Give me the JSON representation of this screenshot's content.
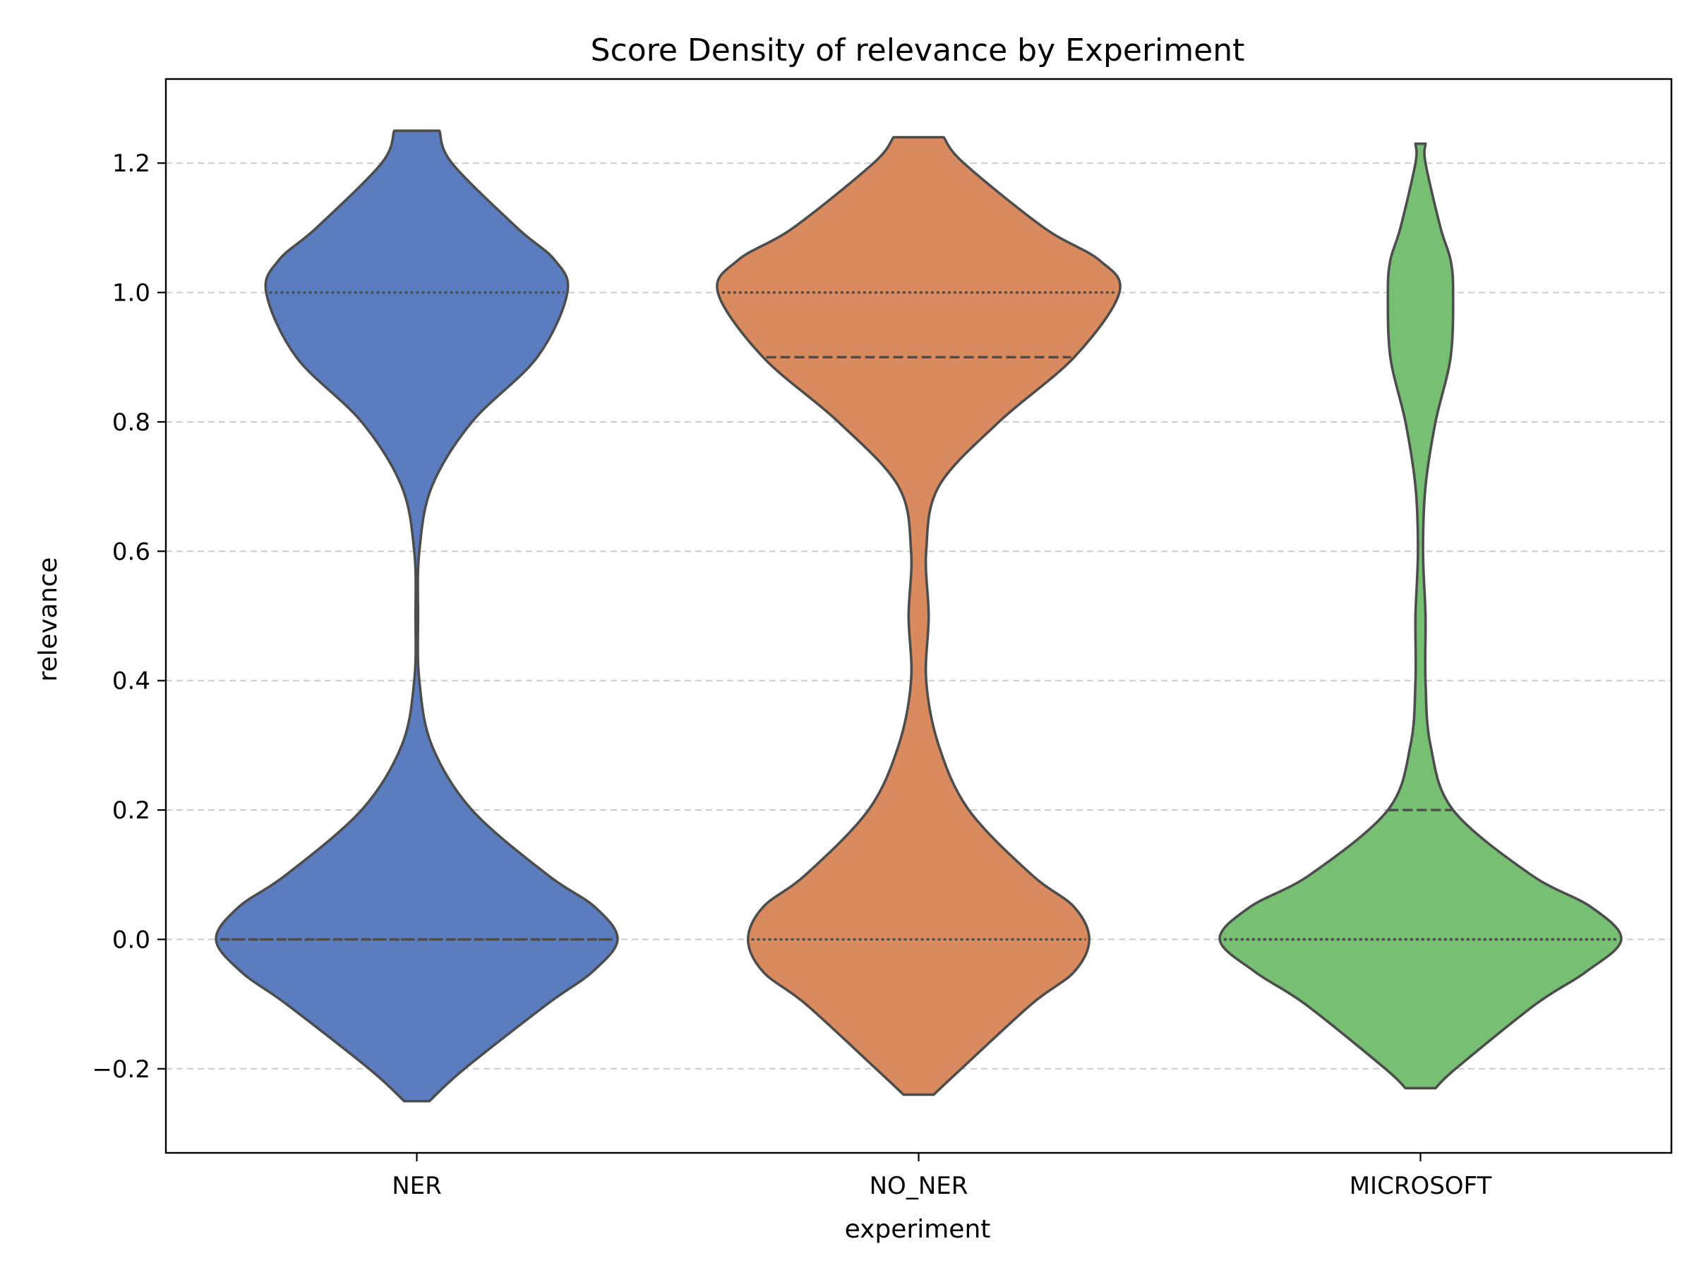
{
  "chart_data": {
    "type": "violin",
    "title": "Score Density of relevance by Experiment",
    "xlabel": "experiment",
    "ylabel": "relevance",
    "ylim": [
      -0.33,
      1.33
    ],
    "yticks": [
      -0.2,
      0.0,
      0.2,
      0.4,
      0.6,
      0.8,
      1.0,
      1.2
    ],
    "ytick_labels": [
      "−0.2",
      "0.0",
      "0.2",
      "0.4",
      "0.6",
      "0.8",
      "1.0",
      "1.2"
    ],
    "grid": "y-dashed",
    "categories": [
      "NER",
      "NO_NER",
      "MICROSOFT"
    ],
    "series": [
      {
        "color": "#5b7dbf",
        "min": -0.25,
        "max": 1.25,
        "profile": [
          [
            -0.25,
            0.05
          ],
          [
            -0.2,
            0.19
          ],
          [
            -0.1,
            0.52
          ],
          [
            -0.05,
            0.7
          ],
          [
            0.0,
            0.8
          ],
          [
            0.05,
            0.71
          ],
          [
            0.1,
            0.52
          ],
          [
            0.2,
            0.22
          ],
          [
            0.3,
            0.06
          ],
          [
            0.4,
            0.01
          ],
          [
            0.5,
            0.005
          ],
          [
            0.6,
            0.01
          ],
          [
            0.7,
            0.06
          ],
          [
            0.8,
            0.22
          ],
          [
            0.9,
            0.48
          ],
          [
            1.0,
            0.6
          ],
          [
            1.05,
            0.55
          ],
          [
            1.1,
            0.4
          ],
          [
            1.2,
            0.14
          ],
          [
            1.25,
            0.09
          ]
        ],
        "quartiles": [
          0.0,
          0.0,
          1.0
        ]
      },
      {
        "color": "#d98a5e",
        "min": -0.24,
        "max": 1.24,
        "profile": [
          [
            -0.24,
            0.06
          ],
          [
            -0.2,
            0.17
          ],
          [
            -0.1,
            0.45
          ],
          [
            -0.05,
            0.62
          ],
          [
            0.0,
            0.68
          ],
          [
            0.05,
            0.62
          ],
          [
            0.1,
            0.45
          ],
          [
            0.2,
            0.2
          ],
          [
            0.3,
            0.08
          ],
          [
            0.4,
            0.03
          ],
          [
            0.5,
            0.04
          ],
          [
            0.6,
            0.03
          ],
          [
            0.7,
            0.08
          ],
          [
            0.8,
            0.32
          ],
          [
            0.9,
            0.62
          ],
          [
            1.0,
            0.8
          ],
          [
            1.05,
            0.72
          ],
          [
            1.1,
            0.5
          ],
          [
            1.2,
            0.18
          ],
          [
            1.24,
            0.1
          ]
        ],
        "quartiles": [
          0.0,
          0.9,
          1.0
        ]
      },
      {
        "color": "#77c073",
        "min": -0.23,
        "max": 1.23,
        "profile": [
          [
            -0.23,
            0.06
          ],
          [
            -0.2,
            0.14
          ],
          [
            -0.1,
            0.46
          ],
          [
            -0.05,
            0.66
          ],
          [
            0.0,
            0.8
          ],
          [
            0.05,
            0.68
          ],
          [
            0.1,
            0.44
          ],
          [
            0.2,
            0.13
          ],
          [
            0.3,
            0.04
          ],
          [
            0.4,
            0.02
          ],
          [
            0.5,
            0.02
          ],
          [
            0.6,
            0.01
          ],
          [
            0.7,
            0.02
          ],
          [
            0.8,
            0.06
          ],
          [
            0.9,
            0.12
          ],
          [
            1.0,
            0.13
          ],
          [
            1.05,
            0.12
          ],
          [
            1.1,
            0.08
          ],
          [
            1.2,
            0.02
          ],
          [
            1.23,
            0.02
          ]
        ],
        "quartiles": [
          0.0,
          0.2,
          0.0
        ]
      }
    ]
  }
}
